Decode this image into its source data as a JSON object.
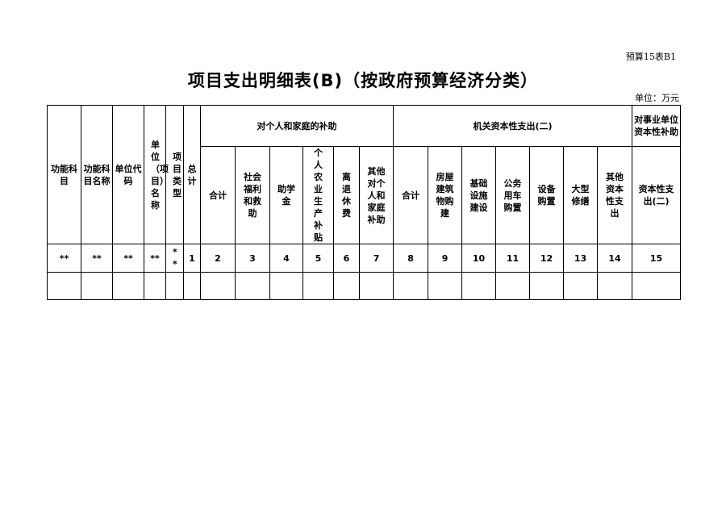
{
  "form_code": "预算15表B1",
  "title": "项目支出明细表(B)（按政府预算经济分类）",
  "unit": "单位：万元",
  "table": {
    "fixed_headers": [
      "功能科目",
      "功能科目名称",
      "单位代码",
      "单位（项目）名称",
      "项目类型",
      "总计"
    ],
    "groups": [
      {
        "label": "对个人和家庭的补助",
        "columns": [
          "合计",
          "社会福利和救助",
          "助学金",
          "个人农业生产补贴",
          "离退休费",
          "其他对个人和家庭补助"
        ]
      },
      {
        "label": "机关资本性支出(二)",
        "columns": [
          "合计",
          "房屋建筑物购建",
          "基础设施建设",
          "公务用车购置",
          "设备购置",
          "大型修缮",
          "其他资本性支出"
        ]
      },
      {
        "label": "对事业单位资本性补助",
        "columns": [
          "资本性支出(二)"
        ]
      }
    ],
    "index_row": [
      "**",
      "**",
      "**",
      "**",
      "**",
      "1",
      "2",
      "3",
      "4",
      "5",
      "6",
      "7",
      "8",
      "9",
      "10",
      "11",
      "12",
      "13",
      "14",
      "15"
    ],
    "empty_rows": 1
  }
}
